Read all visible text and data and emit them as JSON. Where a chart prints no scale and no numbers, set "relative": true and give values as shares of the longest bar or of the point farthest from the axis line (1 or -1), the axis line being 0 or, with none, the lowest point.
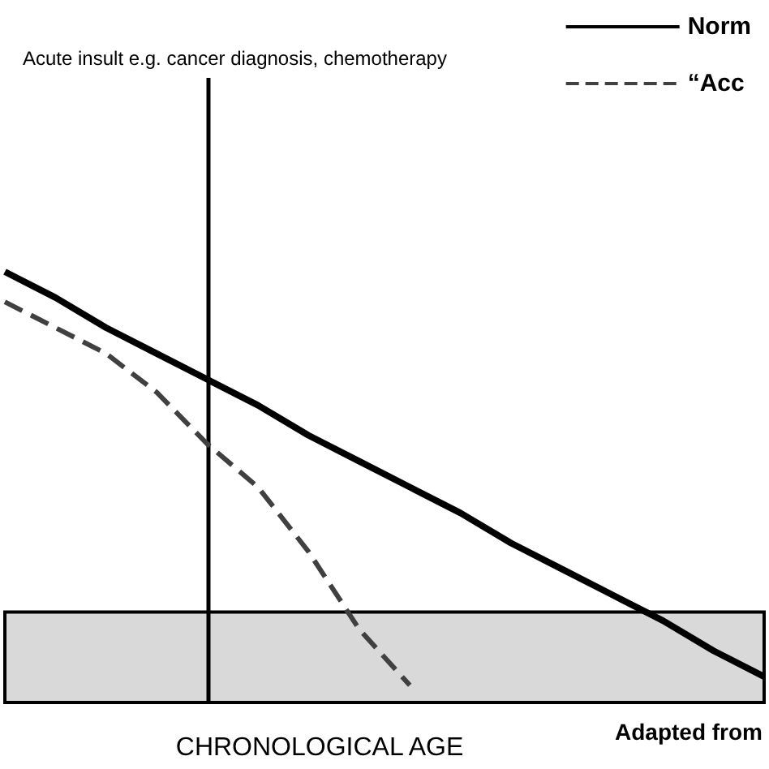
{
  "chart_data": {
    "type": "line",
    "relative": true,
    "xlabel": "CHRONOLOGICAL AGE",
    "grid": false,
    "legend": "top right",
    "marker": "none",
    "categories": [
      null,
      null,
      null,
      null,
      null,
      null,
      null,
      null,
      null,
      null,
      null,
      null,
      null,
      null,
      null,
      null
    ],
    "series": [
      {
        "name": "Norm",
        "color": "#000000",
        "line_style": "solid",
        "values": [
          1,
          0.94,
          0.87,
          0.81,
          0.75,
          0.69,
          0.62,
          0.56,
          0.5,
          0.44,
          0.37,
          0.31,
          0.25,
          0.19,
          0.12,
          0.06
        ]
      },
      {
        "name": "“Acc",
        "color": "#404040",
        "line_style": "dashed",
        "values": [
          0.93,
          0.87,
          0.81,
          0.72,
          0.6,
          0.5,
          0.35,
          0.17,
          0.04,
          null,
          null,
          null,
          null,
          null,
          null,
          null
        ]
      }
    ],
    "bands": [
      {
        "axis": "y",
        "from": 0,
        "to": 0.21,
        "color": "#d9d9d9"
      }
    ],
    "annotations": [
      "Acute insult e.g. cancer diagnosis, chemotherapy",
      "Adapted from"
    ]
  }
}
